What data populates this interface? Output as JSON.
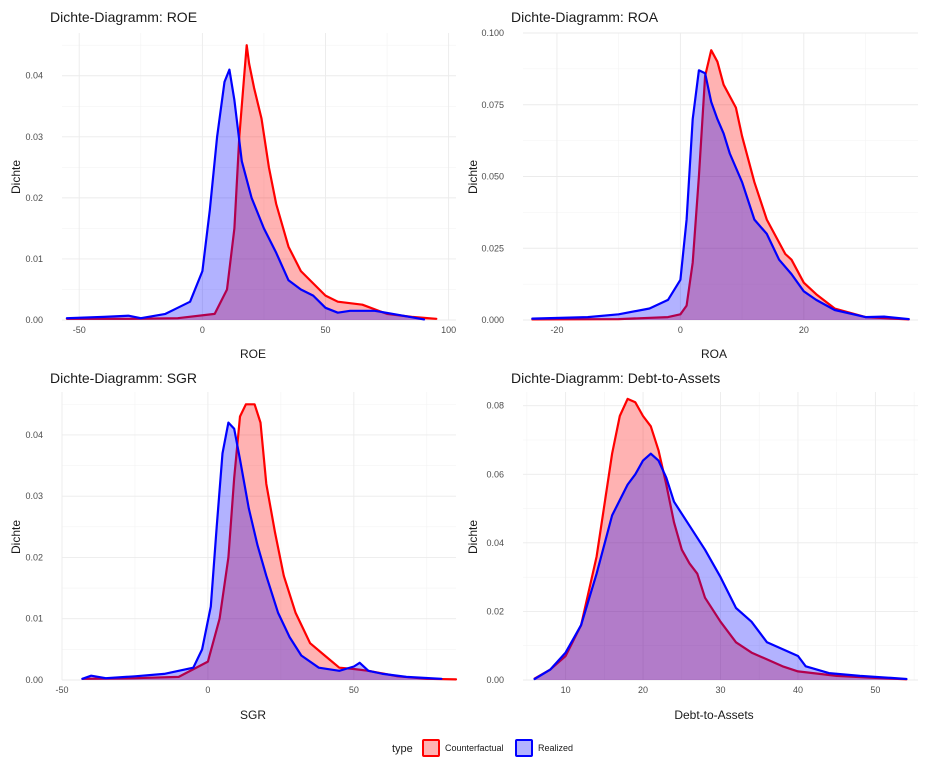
{
  "legend": {
    "title": "type",
    "entries": [
      {
        "label": "Counterfactual",
        "fill": "#ff0000",
        "stroke": "#ff0000"
      },
      {
        "label": "Realized",
        "fill": "#0000ff",
        "stroke": "#0000ff"
      }
    ],
    "placement": "bottom"
  },
  "chart_data": [
    {
      "type": "area",
      "title": "Dichte-Diagramm: ROE",
      "xlabel": "ROE",
      "ylabel": "Dichte",
      "xlim": [
        -57,
        103
      ],
      "ylim": [
        0,
        0.047
      ],
      "xticks": [
        -50,
        0,
        50,
        100
      ],
      "yticks": [
        0,
        0.01,
        0.02,
        0.03,
        0.04
      ],
      "ytick_labels": [
        "0.00",
        "0.01",
        "0.02",
        "0.03",
        "0.04"
      ],
      "grid": true,
      "series": [
        {
          "name": "Realized",
          "color": "#0000ff",
          "points": [
            [
              -55,
              0.0003
            ],
            [
              -40,
              0.0005
            ],
            [
              -30,
              0.0007
            ],
            [
              -25,
              0.0003
            ],
            [
              -15,
              0.001
            ],
            [
              -10,
              0.002
            ],
            [
              -5,
              0.003
            ],
            [
              0,
              0.008
            ],
            [
              3,
              0.018
            ],
            [
              6,
              0.03
            ],
            [
              9,
              0.039
            ],
            [
              11,
              0.041
            ],
            [
              13,
              0.036
            ],
            [
              16,
              0.026
            ],
            [
              20,
              0.02
            ],
            [
              25,
              0.015
            ],
            [
              30,
              0.011
            ],
            [
              35,
              0.0065
            ],
            [
              40,
              0.005
            ],
            [
              45,
              0.004
            ],
            [
              50,
              0.002
            ],
            [
              55,
              0.0012
            ],
            [
              60,
              0.0015
            ],
            [
              70,
              0.0015
            ],
            [
              80,
              0.0008
            ],
            [
              90,
              0.0001
            ]
          ]
        },
        {
          "name": "Counterfactual",
          "color": "#ff0000",
          "points": [
            [
              -55,
              0.0002
            ],
            [
              -30,
              0.0002
            ],
            [
              -10,
              0.0003
            ],
            [
              5,
              0.001
            ],
            [
              10,
              0.005
            ],
            [
              13,
              0.015
            ],
            [
              15,
              0.03
            ],
            [
              17,
              0.04
            ],
            [
              18,
              0.045
            ],
            [
              19,
              0.042
            ],
            [
              21,
              0.038
            ],
            [
              24,
              0.033
            ],
            [
              27,
              0.025
            ],
            [
              30,
              0.019
            ],
            [
              35,
              0.012
            ],
            [
              40,
              0.008
            ],
            [
              45,
              0.006
            ],
            [
              50,
              0.004
            ],
            [
              55,
              0.003
            ],
            [
              65,
              0.0025
            ],
            [
              75,
              0.001
            ],
            [
              85,
              0.0005
            ],
            [
              95,
              0.0002
            ]
          ]
        }
      ]
    },
    {
      "type": "area",
      "title": "Dichte-Diagramm: ROA",
      "xlabel": "ROA",
      "ylabel": "Dichte",
      "xlim": [
        -25.5,
        38.5
      ],
      "ylim": [
        0,
        0.1
      ],
      "xticks": [
        -20,
        0,
        20
      ],
      "yticks": [
        0,
        0.025,
        0.05,
        0.075,
        0.1
      ],
      "ytick_labels": [
        "0.000",
        "0.025",
        "0.050",
        "0.075",
        "0.100"
      ],
      "grid": true,
      "series": [
        {
          "name": "Realized",
          "color": "#0000ff",
          "points": [
            [
              -24,
              0.0005
            ],
            [
              -15,
              0.001
            ],
            [
              -10,
              0.002
            ],
            [
              -5,
              0.004
            ],
            [
              -2,
              0.007
            ],
            [
              0,
              0.014
            ],
            [
              1,
              0.035
            ],
            [
              2,
              0.07
            ],
            [
              3,
              0.087
            ],
            [
              4,
              0.086
            ],
            [
              5,
              0.076
            ],
            [
              6,
              0.07
            ],
            [
              7,
              0.065
            ],
            [
              8,
              0.058
            ],
            [
              10,
              0.048
            ],
            [
              12,
              0.035
            ],
            [
              14,
              0.03
            ],
            [
              16,
              0.021
            ],
            [
              18,
              0.016
            ],
            [
              20,
              0.01
            ],
            [
              22,
              0.007
            ],
            [
              25,
              0.0035
            ],
            [
              30,
              0.001
            ],
            [
              33,
              0.0012
            ],
            [
              37,
              0.0003
            ]
          ]
        },
        {
          "name": "Counterfactual",
          "color": "#ff0000",
          "points": [
            [
              -24,
              0.0002
            ],
            [
              -10,
              0.0003
            ],
            [
              -2,
              0.001
            ],
            [
              0,
              0.002
            ],
            [
              1,
              0.005
            ],
            [
              2,
              0.02
            ],
            [
              3,
              0.05
            ],
            [
              4,
              0.085
            ],
            [
              5,
              0.094
            ],
            [
              6,
              0.09
            ],
            [
              7,
              0.082
            ],
            [
              9,
              0.074
            ],
            [
              10,
              0.064
            ],
            [
              12,
              0.048
            ],
            [
              14,
              0.035
            ],
            [
              16,
              0.027
            ],
            [
              17,
              0.023
            ],
            [
              18,
              0.021
            ],
            [
              20,
              0.013
            ],
            [
              22,
              0.009
            ],
            [
              25,
              0.004
            ],
            [
              30,
              0.001
            ],
            [
              37,
              0.0002
            ]
          ]
        }
      ]
    },
    {
      "type": "area",
      "title": "Dichte-Diagramm: SGR",
      "xlabel": "SGR",
      "ylabel": "Dichte",
      "xlim": [
        -50,
        85
      ],
      "ylim": [
        0,
        0.047
      ],
      "xticks": [
        -50,
        0,
        50
      ],
      "yticks": [
        0,
        0.01,
        0.02,
        0.03,
        0.04
      ],
      "ytick_labels": [
        "0.00",
        "0.01",
        "0.02",
        "0.03",
        "0.04"
      ],
      "grid": true,
      "series": [
        {
          "name": "Realized",
          "color": "#0000ff",
          "points": [
            [
              -43,
              0.0002
            ],
            [
              -40,
              0.0007
            ],
            [
              -35,
              0.0003
            ],
            [
              -25,
              0.0006
            ],
            [
              -15,
              0.001
            ],
            [
              -10,
              0.0015
            ],
            [
              -5,
              0.002
            ],
            [
              -2,
              0.005
            ],
            [
              1,
              0.012
            ],
            [
              3,
              0.025
            ],
            [
              5,
              0.037
            ],
            [
              7,
              0.042
            ],
            [
              9,
              0.041
            ],
            [
              11,
              0.036
            ],
            [
              14,
              0.028
            ],
            [
              17,
              0.022
            ],
            [
              20,
              0.017
            ],
            [
              24,
              0.011
            ],
            [
              28,
              0.007
            ],
            [
              32,
              0.004
            ],
            [
              38,
              0.002
            ],
            [
              45,
              0.0015
            ],
            [
              50,
              0.0022
            ],
            [
              52,
              0.0028
            ],
            [
              55,
              0.0015
            ],
            [
              60,
              0.001
            ],
            [
              68,
              0.0005
            ],
            [
              80,
              0.0002
            ]
          ]
        },
        {
          "name": "Counterfactual",
          "color": "#ff0000",
          "points": [
            [
              -43,
              0.0002
            ],
            [
              -25,
              0.0003
            ],
            [
              -10,
              0.0005
            ],
            [
              0,
              0.003
            ],
            [
              4,
              0.01
            ],
            [
              7,
              0.02
            ],
            [
              9,
              0.033
            ],
            [
              11,
              0.043
            ],
            [
              13,
              0.045
            ],
            [
              16,
              0.045
            ],
            [
              18,
              0.042
            ],
            [
              20,
              0.032
            ],
            [
              23,
              0.024
            ],
            [
              26,
              0.017
            ],
            [
              30,
              0.011
            ],
            [
              35,
              0.006
            ],
            [
              40,
              0.004
            ],
            [
              45,
              0.002
            ],
            [
              50,
              0.0018
            ],
            [
              55,
              0.0015
            ],
            [
              65,
              0.0006
            ],
            [
              75,
              0.0002
            ],
            [
              85,
              0.0001
            ]
          ]
        }
      ]
    },
    {
      "type": "area",
      "title": "Dichte-Diagramm: Debt-to-Assets",
      "xlabel": "Debt-to-Assets",
      "ylabel": "Dichte",
      "xlim": [
        4.5,
        55.5
      ],
      "ylim": [
        0,
        0.084
      ],
      "xticks": [
        10,
        20,
        30,
        40,
        50
      ],
      "yticks": [
        0,
        0.02,
        0.04,
        0.06,
        0.08
      ],
      "ytick_labels": [
        "0.00",
        "0.02",
        "0.04",
        "0.06",
        "0.08"
      ],
      "grid": true,
      "series": [
        {
          "name": "Realized",
          "color": "#0000ff",
          "points": [
            [
              6,
              0.0003
            ],
            [
              8,
              0.003
            ],
            [
              10,
              0.008
            ],
            [
              12,
              0.016
            ],
            [
              14,
              0.031
            ],
            [
              16,
              0.048
            ],
            [
              18,
              0.057
            ],
            [
              19,
              0.06
            ],
            [
              20,
              0.064
            ],
            [
              21,
              0.066
            ],
            [
              22,
              0.064
            ],
            [
              23,
              0.059
            ],
            [
              24,
              0.052
            ],
            [
              26,
              0.045
            ],
            [
              28,
              0.038
            ],
            [
              30,
              0.03
            ],
            [
              32,
              0.021
            ],
            [
              34,
              0.017
            ],
            [
              36,
              0.011
            ],
            [
              38,
              0.009
            ],
            [
              40,
              0.007
            ],
            [
              41,
              0.004
            ],
            [
              44,
              0.002
            ],
            [
              48,
              0.0012
            ],
            [
              52,
              0.0006
            ],
            [
              54,
              0.0003
            ]
          ]
        },
        {
          "name": "Counterfactual",
          "color": "#ff0000",
          "points": [
            [
              6,
              0.0004
            ],
            [
              8,
              0.003
            ],
            [
              10,
              0.007
            ],
            [
              12,
              0.016
            ],
            [
              14,
              0.036
            ],
            [
              16,
              0.066
            ],
            [
              17,
              0.077
            ],
            [
              18,
              0.082
            ],
            [
              19,
              0.081
            ],
            [
              20,
              0.077
            ],
            [
              21,
              0.074
            ],
            [
              22,
              0.067
            ],
            [
              23,
              0.057
            ],
            [
              24,
              0.046
            ],
            [
              25,
              0.038
            ],
            [
              26,
              0.034
            ],
            [
              27,
              0.031
            ],
            [
              28,
              0.024
            ],
            [
              30,
              0.017
            ],
            [
              32,
              0.011
            ],
            [
              34,
              0.008
            ],
            [
              36,
              0.006
            ],
            [
              38,
              0.004
            ],
            [
              40,
              0.0025
            ],
            [
              45,
              0.0012
            ],
            [
              50,
              0.0006
            ],
            [
              54,
              0.0002
            ]
          ]
        }
      ]
    }
  ]
}
